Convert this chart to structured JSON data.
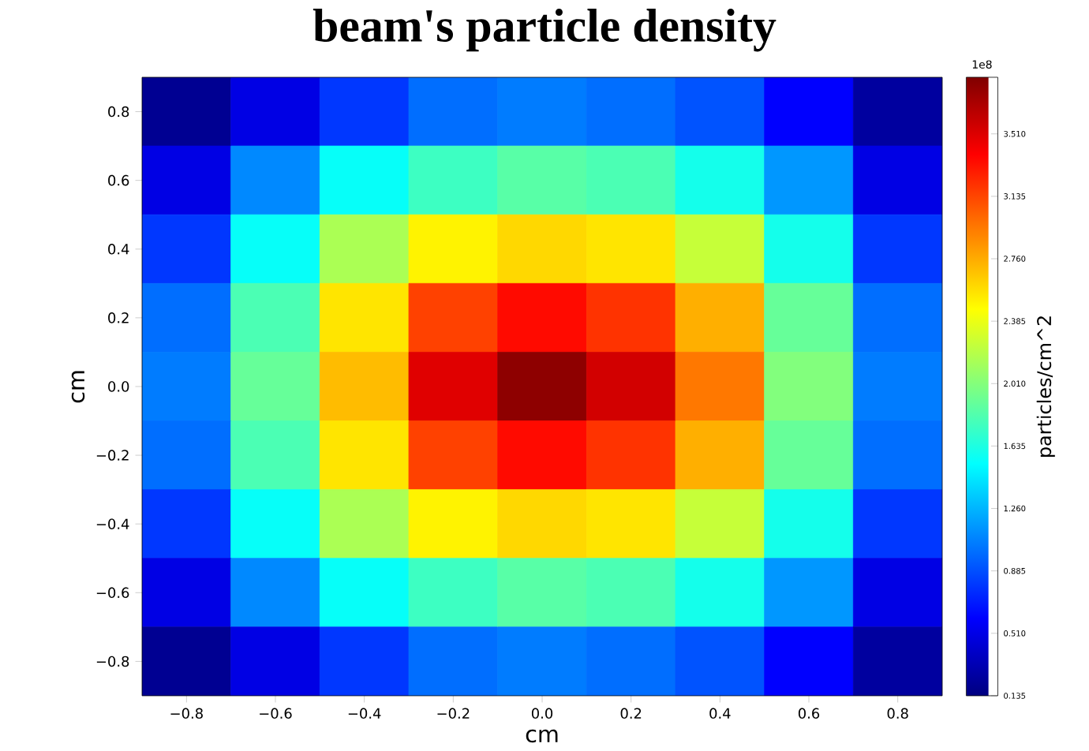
{
  "chart_data": {
    "type": "heatmap",
    "title": "beam's particle density",
    "xlabel": "cm",
    "ylabel": "cm",
    "clabel": "particles/cm^2",
    "annotations": [
      "1e8"
    ],
    "categories": [
      "−0.8",
      "−0.6",
      "−0.4",
      "−0.2",
      "0.0",
      "0.2",
      "0.4",
      "0.6",
      "0.8"
    ],
    "y_categories": [
      "0.8",
      "0.6",
      "0.4",
      "0.2",
      "0.0",
      "−0.2",
      "−0.4",
      "−0.6",
      "−0.8"
    ],
    "clim": [
      0.135,
      3.85
    ],
    "cticks": [
      {
        "value": 0.135,
        "label": "0.135"
      },
      {
        "value": 0.51,
        "label": "0.510"
      },
      {
        "value": 0.885,
        "label": "0.885"
      },
      {
        "value": 1.26,
        "label": "1.260"
      },
      {
        "value": 1.635,
        "label": "1.635"
      },
      {
        "value": 2.01,
        "label": "2.010"
      },
      {
        "value": 2.385,
        "label": "2.385"
      },
      {
        "value": 2.76,
        "label": "2.760"
      },
      {
        "value": 3.135,
        "label": "3.135"
      },
      {
        "value": 3.51,
        "label": "3.510"
      }
    ],
    "cells": [
      [
        0.2,
        0.5,
        0.8,
        1.0,
        1.05,
        1.0,
        0.9,
        0.6,
        0.25
      ],
      [
        0.5,
        1.1,
        1.55,
        1.75,
        1.85,
        1.8,
        1.6,
        1.15,
        0.5
      ],
      [
        0.8,
        1.55,
        2.15,
        2.5,
        2.6,
        2.55,
        2.25,
        1.6,
        0.8
      ],
      [
        1.0,
        1.8,
        2.55,
        3.15,
        3.35,
        3.2,
        2.75,
        1.9,
        1.0
      ],
      [
        1.05,
        1.9,
        2.7,
        3.5,
        3.8,
        3.55,
        2.95,
        2.0,
        1.05
      ],
      [
        1.0,
        1.8,
        2.55,
        3.15,
        3.35,
        3.2,
        2.75,
        1.9,
        1.0
      ],
      [
        0.8,
        1.55,
        2.15,
        2.5,
        2.6,
        2.55,
        2.25,
        1.6,
        0.8
      ],
      [
        0.5,
        1.1,
        1.55,
        1.75,
        1.85,
        1.8,
        1.6,
        1.15,
        0.5
      ],
      [
        0.2,
        0.5,
        0.8,
        1.0,
        1.05,
        1.0,
        0.9,
        0.6,
        0.25
      ]
    ]
  }
}
